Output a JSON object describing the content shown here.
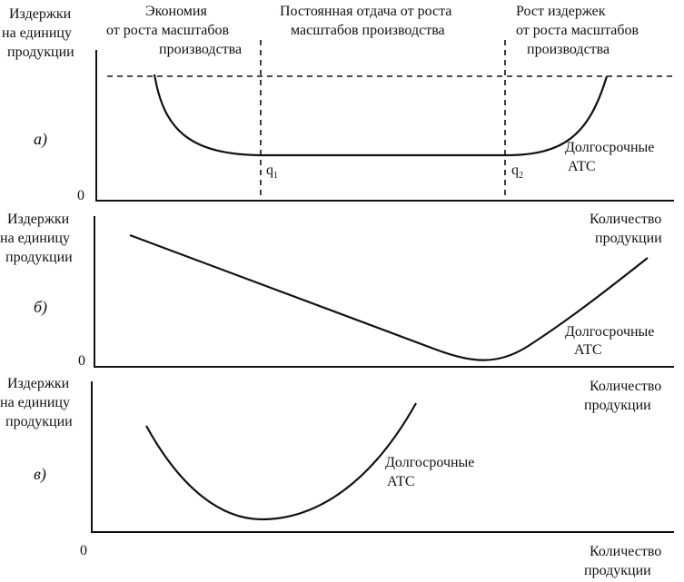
{
  "panel_a": {
    "tag": "а)",
    "ylabel": [
      "Издержки",
      "на единицу",
      "продукции"
    ],
    "origin": "0",
    "region_left": [
      "Экономия",
      "от роста масштабов",
      "производства"
    ],
    "region_mid": [
      "Постоянная отдача от роста",
      "масштабов производства"
    ],
    "region_right": [
      "Рост издержек",
      "от роста масштабов",
      "производства"
    ],
    "q1": "q",
    "q1_sub": "1",
    "q2": "q",
    "q2_sub": "2",
    "curve_label": [
      "Долгосрочные",
      "АТС"
    ]
  },
  "panel_b": {
    "tag": "б)",
    "ylabel": [
      "Издержки",
      "на единицу",
      "продукции"
    ],
    "xlabel": [
      "Количество",
      "продукции"
    ],
    "origin": "0",
    "curve_label": [
      "Долгосрочные",
      "АТС"
    ]
  },
  "panel_c": {
    "tag": "в)",
    "ylabel": [
      "Издержки",
      "на единицу",
      "продукции"
    ],
    "xlabel": [
      "Количество",
      "продукции"
    ],
    "origin": "0",
    "curve_label": [
      "Долгосрочные",
      "АТС"
    ]
  }
}
